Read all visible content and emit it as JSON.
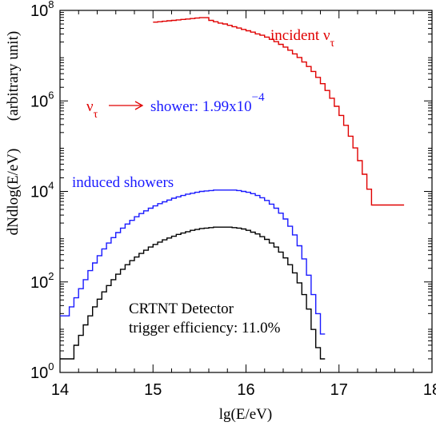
{
  "chart_data": {
    "type": "line",
    "xlabel": "lg(E/eV)",
    "ylabel_main": "dNdlog(E/eV)",
    "ylabel_unit": "(arbitrary unit)",
    "xlim": [
      14,
      18
    ],
    "ylim_log10": [
      0,
      8
    ],
    "y_scale": "log",
    "x_ticks": [
      "14",
      "15",
      "16",
      "17",
      "18"
    ],
    "y_ticks": [
      {
        "base": "10",
        "exp": "0"
      },
      {
        "base": "10",
        "exp": "2"
      },
      {
        "base": "10",
        "exp": "4"
      },
      {
        "base": "10",
        "exp": "6"
      },
      {
        "base": "10",
        "exp": "8"
      }
    ],
    "series": [
      {
        "name": "incident ν_τ",
        "color": "#e00000",
        "step_width": 0.05,
        "x_start": 15.0,
        "log10_values": [
          7.74,
          7.75,
          7.76,
          7.77,
          7.78,
          7.79,
          7.8,
          7.81,
          7.82,
          7.83,
          7.84,
          7.84,
          7.78,
          7.75,
          7.72,
          7.7,
          7.67,
          7.64,
          7.61,
          7.58,
          7.55,
          7.52,
          7.48,
          7.45,
          7.41,
          7.36,
          7.31,
          7.25,
          7.19,
          7.12,
          7.04,
          6.96,
          6.86,
          6.76,
          6.65,
          6.52,
          6.38,
          6.23,
          6.06,
          5.88,
          5.68,
          5.46,
          5.22,
          4.96,
          4.68,
          4.38,
          4.05,
          3.7,
          3.7,
          3.7,
          3.7,
          3.7,
          3.7,
          3.7
        ]
      },
      {
        "name": "induced showers",
        "color": "#1a1aff",
        "step_width": 0.05,
        "x_start": 14.0,
        "log10_values": [
          1.25,
          1.25,
          1.45,
          1.65,
          1.85,
          2.05,
          2.25,
          2.42,
          2.58,
          2.73,
          2.86,
          2.98,
          3.09,
          3.19,
          3.28,
          3.36,
          3.44,
          3.51,
          3.57,
          3.63,
          3.68,
          3.73,
          3.77,
          3.81,
          3.85,
          3.88,
          3.91,
          3.94,
          3.96,
          3.98,
          4.0,
          4.01,
          4.02,
          4.03,
          4.03,
          4.03,
          4.03,
          4.03,
          4.02,
          4.0,
          3.98,
          3.95,
          3.91,
          3.86,
          3.8,
          3.72,
          3.63,
          3.52,
          3.39,
          3.23,
          3.04,
          2.8,
          2.51,
          2.15,
          1.72,
          1.3,
          0.85
        ]
      },
      {
        "name": "CRTNT Detector",
        "color": "#000000",
        "step_width": 0.05,
        "x_start": 14.0,
        "log10_values": [
          0.3,
          0.3,
          0.3,
          0.6,
          0.82,
          1.05,
          1.25,
          1.45,
          1.62,
          1.78,
          1.92,
          2.05,
          2.17,
          2.28,
          2.38,
          2.47,
          2.55,
          2.63,
          2.7,
          2.77,
          2.83,
          2.88,
          2.93,
          2.97,
          3.01,
          3.05,
          3.08,
          3.11,
          3.14,
          3.16,
          3.18,
          3.19,
          3.2,
          3.21,
          3.21,
          3.21,
          3.21,
          3.2,
          3.19,
          3.17,
          3.14,
          3.1,
          3.06,
          3.0,
          2.94,
          2.86,
          2.77,
          2.66,
          2.53,
          2.38,
          2.2,
          1.98,
          1.72,
          1.4,
          0.95,
          0.55,
          0.3
        ]
      }
    ],
    "annotations": {
      "incident_prefix": "incident ν",
      "incident_sub": "τ",
      "nu_symbol": "ν",
      "nu_sub": "τ",
      "shower_text": "shower: 1.99x10",
      "shower_exp": "−4",
      "induced_label": "induced showers",
      "detector_line1": "CRTNT Detector",
      "detector_line2": "trigger efficiency: 11.0%"
    },
    "colors": {
      "red": "#e00000",
      "blue": "#1a1aff",
      "black": "#000000"
    }
  }
}
